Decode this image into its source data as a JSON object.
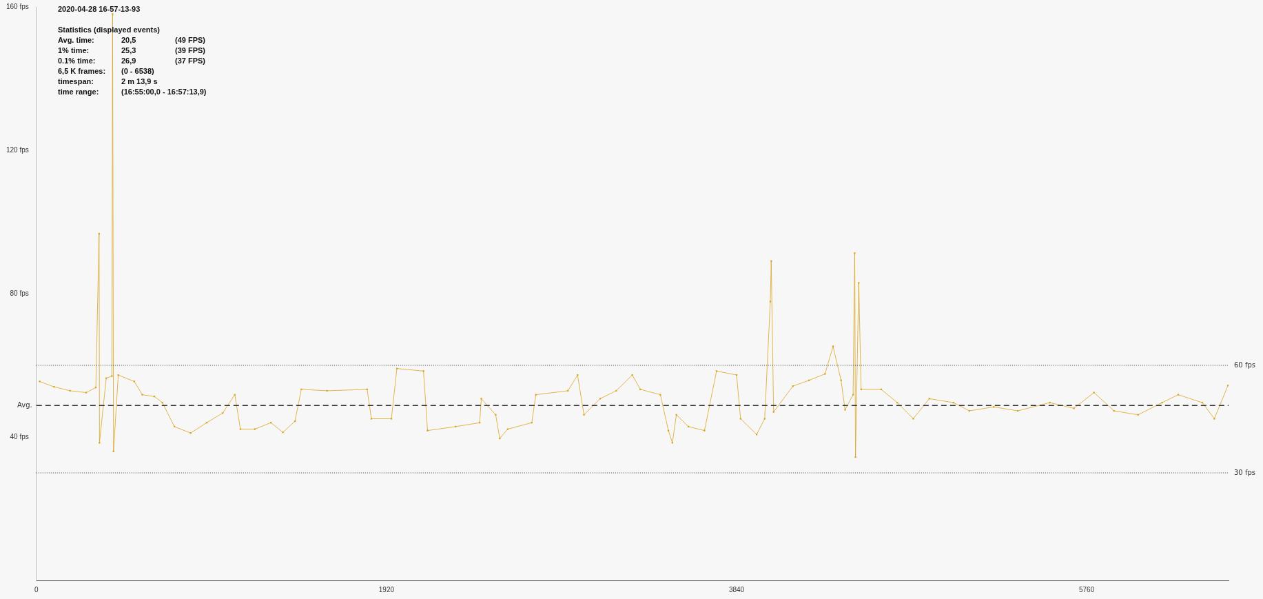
{
  "chart_data": {
    "type": "line",
    "title": "2020-04-28 16-57-13-93",
    "annotations": [
      "Statistics (displayed events)",
      "Avg. time:\t20,5\t(49 FPS)",
      "1% time:\t25,3\t(39 FPS)",
      "0.1% time:\t26,9\t(37 FPS)",
      "6,5 K frames:\t(0 - 6538)",
      "timespan:\t2 m 13,9 s",
      "time range:\t(16:55:00,0 - 16:57:13,9)"
    ],
    "xlim": [
      0,
      6538
    ],
    "xticks": [
      0,
      1920,
      3840,
      5760
    ],
    "ylim": [
      0,
      160
    ],
    "yticks": [
      {
        "value": 40,
        "label": "40 fps"
      },
      {
        "value": 80,
        "label": "80 fps"
      },
      {
        "value": 120,
        "label": "120 fps"
      },
      {
        "value": 160,
        "label": "160 fps"
      }
    ],
    "grid": false,
    "legend": false,
    "marker": "square",
    "line_style": "solid",
    "ref_lines": [
      {
        "axis": "y",
        "value": 60,
        "label": "60 fps",
        "line_style": "dotted"
      },
      {
        "axis": "y",
        "value": 48.8,
        "label": "Avg.",
        "line_style": "dashed"
      },
      {
        "axis": "y",
        "value": 30,
        "label": "30 fps",
        "line_style": "dotted"
      }
    ],
    "series": [
      {
        "color": "#d9a520",
        "x": [
          18,
          97,
          185,
          273,
          326,
          344,
          346,
          383,
          414,
          418,
          423,
          449,
          537,
          581,
          647,
          691,
          757,
          846,
          934,
          1022,
          1088,
          1119,
          1198,
          1286,
          1352,
          1418,
          1453,
          1594,
          1814,
          1837,
          1947,
          1977,
          2123,
          2145,
          2299,
          2431,
          2440,
          2519,
          2541,
          2585,
          2717,
          2739,
          2915,
          2968,
          3003,
          3092,
          3180,
          3268,
          3312,
          3422,
          3466,
          3488,
          3510,
          3576,
          3664,
          3730,
          3840,
          3862,
          3950,
          3994,
          4025,
          4030,
          4043,
          4149,
          4237,
          4325,
          4369,
          4413,
          4435,
          4479,
          4488,
          4492,
          4510,
          4523,
          4633,
          4721,
          4809,
          4897,
          5029,
          5117,
          5250,
          5382,
          5558,
          5690,
          5800,
          5910,
          6042,
          6174,
          6262,
          6394,
          6460,
          6535
        ],
        "values": [
          55.5,
          54,
          52.9,
          52.4,
          53.8,
          96.7,
          38.4,
          56.4,
          57,
          158,
          36,
          57.3,
          55.5,
          51.8,
          51.3,
          49.6,
          42.9,
          41.1,
          44,
          46.7,
          51.8,
          42.2,
          42.2,
          44,
          41.3,
          44.4,
          53.3,
          52.9,
          53.3,
          45.1,
          45.1,
          59.1,
          58.4,
          41.8,
          42.9,
          44,
          50.7,
          46.2,
          39.6,
          42.2,
          44,
          51.8,
          52.9,
          57.3,
          46.2,
          50.7,
          52.9,
          57.3,
          53.3,
          51.8,
          41.8,
          38.4,
          46.2,
          42.9,
          41.8,
          58.4,
          57.3,
          45.1,
          40.7,
          45.1,
          77.8,
          89.1,
          47,
          54.2,
          55.8,
          57.6,
          65.3,
          55.8,
          47.6,
          51.8,
          91.3,
          34.4,
          83,
          53.3,
          53.3,
          49.6,
          45.1,
          50.7,
          49.6,
          47.3,
          48.4,
          47.3,
          49.6,
          48,
          52.4,
          47.3,
          46.2,
          49.6,
          51.8,
          49.6,
          45.1,
          54.4
        ]
      }
    ]
  }
}
